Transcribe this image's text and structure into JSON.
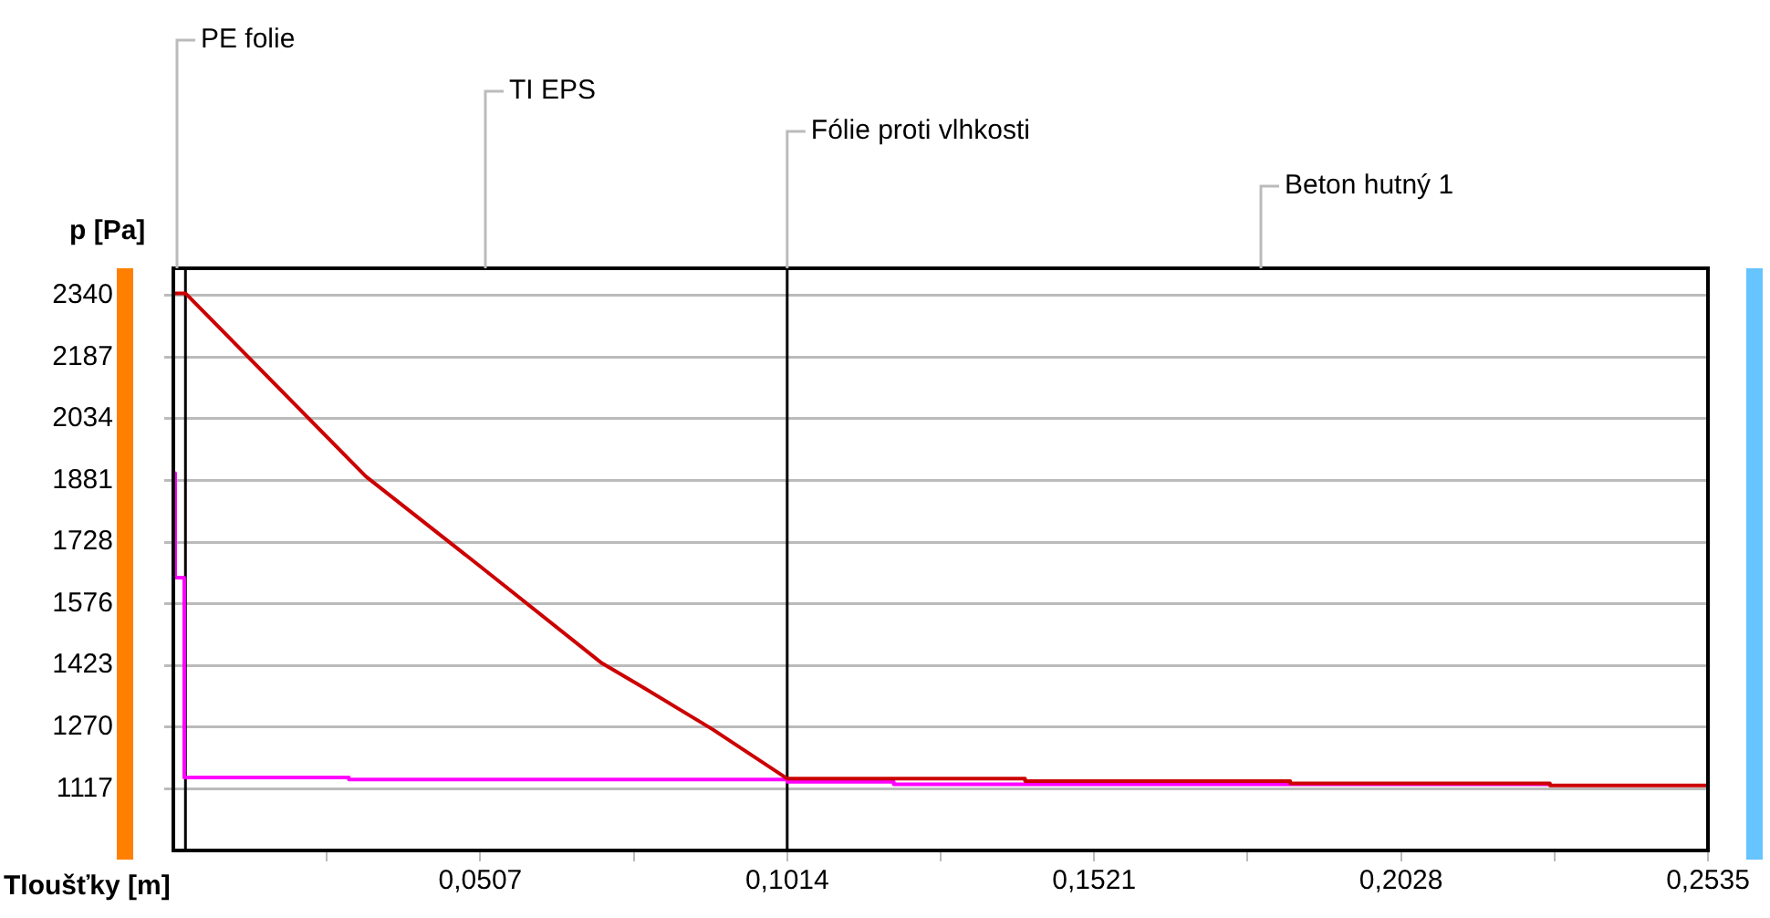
{
  "chart_data": {
    "type": "line",
    "xlabel": "Tloušťky [m]",
    "ylabel": "p [Pa]",
    "xlim": [
      0,
      0.2535
    ],
    "ylim": [
      964,
      2407
    ],
    "xticks": [
      {
        "value": 0.02535,
        "label": null
      },
      {
        "value": 0.0507,
        "label": "0,0507"
      },
      {
        "value": 0.07605,
        "label": null
      },
      {
        "value": 0.1014,
        "label": "0,1014"
      },
      {
        "value": 0.12675,
        "label": null
      },
      {
        "value": 0.1521,
        "label": "0,1521"
      },
      {
        "value": 0.17745,
        "label": null
      },
      {
        "value": 0.2028,
        "label": "0,2028"
      },
      {
        "value": 0.22815,
        "label": null
      },
      {
        "value": 0.2535,
        "label": "0,2535"
      }
    ],
    "yticks": [
      1117,
      1270,
      1423,
      1576,
      1728,
      1881,
      2034,
      2187,
      2340
    ],
    "grid": "y",
    "legend": false,
    "marker": "none",
    "line_style": "solid",
    "series": [
      {
        "color": "#cc0000",
        "x": [
          0,
          0.002,
          0.0318,
          0.0507,
          0.0708,
          0.0774,
          0.0891,
          0.1008,
          0.1014,
          0.1407,
          0.1407,
          0.1845,
          0.1845,
          0.2274,
          0.2274,
          0.2535
        ],
        "values": [
          2345,
          2345,
          1891,
          1668,
          1428,
          1370,
          1264,
          1148,
          1142,
          1142,
          1136,
          1136,
          1130,
          1130,
          1125,
          1125
        ]
      },
      {
        "color": "#ff00ff",
        "x": [
          0,
          0.0003,
          0.0018,
          0.0018,
          0.029,
          0.029,
          0.1014,
          0.1014,
          0.119,
          0.119,
          0.2274
        ],
        "values": [
          1899,
          1640,
          1640,
          1145,
          1145,
          1140,
          1140,
          1134,
          1134,
          1128,
          1128
        ]
      }
    ],
    "ref_lines": [
      {
        "axis": "x",
        "value": 0.002,
        "color": "#000000"
      },
      {
        "axis": "x",
        "value": 0.1014,
        "color": "#000000"
      }
    ],
    "annotations": [
      "PE folie",
      "TI EPS",
      {
        "text": "Fólie proti vlhkosti",
        "x": 0.1014,
        "y": 2407
      },
      "Beton hutný 1"
    ]
  }
}
